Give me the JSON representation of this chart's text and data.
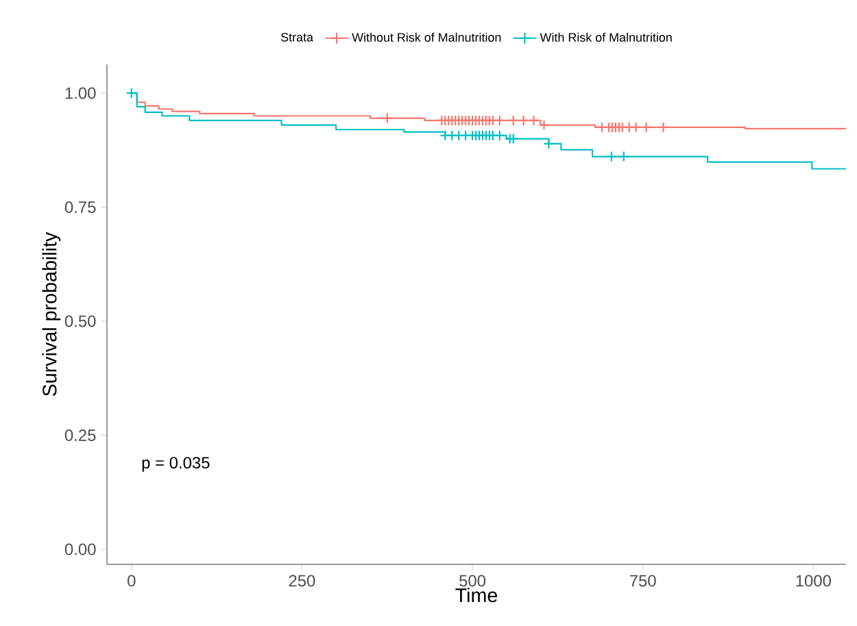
{
  "chart_data": {
    "type": "step",
    "xlabel": "Time",
    "ylabel": "Survival probability",
    "legend_title": "Strata",
    "legend": "top",
    "annotations": [
      "p = 0.035"
    ],
    "xlim": [
      -36,
      1048
    ],
    "ylim": [
      -0.033,
      1.063
    ],
    "xticks": [
      0,
      250,
      500,
      750,
      1000
    ],
    "yticks": [
      {
        "value": 0,
        "label": "0.00"
      },
      {
        "value": 0.25,
        "label": "0.25"
      },
      {
        "value": 0.5,
        "label": "0.50"
      },
      {
        "value": 0.75,
        "label": "0.75"
      },
      {
        "value": 1,
        "label": "1.00"
      }
    ],
    "grid": false,
    "marker": "none",
    "line_style": "solid",
    "series": [
      {
        "name": "Without Risk of Malnutrition",
        "color": "#f8766d",
        "x": [
          0,
          8,
          20,
          40,
          60,
          100,
          180,
          350,
          430,
          600,
          680,
          900,
          1048
        ],
        "values": [
          1,
          0.98,
          0.972,
          0.965,
          0.96,
          0.955,
          0.95,
          0.945,
          0.94,
          0.93,
          0.925,
          0.922,
          0.922
        ]
      },
      {
        "name": "With Risk of Malnutrition",
        "color": "#00bfc4",
        "x": [
          0,
          8,
          20,
          45,
          85,
          220,
          300,
          400,
          460,
          550,
          612,
          630,
          676,
          845,
          998,
          1048
        ],
        "values": [
          1,
          0.97,
          0.958,
          0.95,
          0.94,
          0.93,
          0.92,
          0.915,
          0.907,
          0.9,
          0.889,
          0.876,
          0.861,
          0.849,
          0.834,
          0.834
        ]
      },
      {
        "type": "scatter",
        "marker": "cross",
        "color": "#f8766d",
        "x": [
          375,
          455,
          460,
          465,
          470,
          475,
          480,
          485,
          490,
          495,
          500,
          505,
          510,
          515,
          520,
          525,
          530,
          540,
          560,
          575,
          590,
          605,
          690,
          700,
          705,
          710,
          715,
          720,
          730,
          740,
          755,
          780
        ],
        "values": [
          0.945,
          0.94,
          0.94,
          0.94,
          0.94,
          0.94,
          0.94,
          0.94,
          0.94,
          0.94,
          0.94,
          0.94,
          0.94,
          0.94,
          0.94,
          0.94,
          0.94,
          0.94,
          0.94,
          0.94,
          0.94,
          0.93,
          0.925,
          0.925,
          0.925,
          0.925,
          0.925,
          0.925,
          0.925,
          0.925,
          0.925,
          0.925
        ]
      },
      {
        "type": "scatter",
        "marker": "cross",
        "color": "#00bfc4",
        "x": [
          0,
          460,
          470,
          480,
          490,
          500,
          505,
          510,
          515,
          520,
          525,
          530,
          540,
          555,
          560,
          612,
          704,
          722
        ],
        "values": [
          1,
          0.907,
          0.907,
          0.907,
          0.907,
          0.907,
          0.907,
          0.907,
          0.907,
          0.907,
          0.907,
          0.907,
          0.907,
          0.9,
          0.9,
          0.889,
          0.861,
          0.861
        ]
      }
    ]
  }
}
